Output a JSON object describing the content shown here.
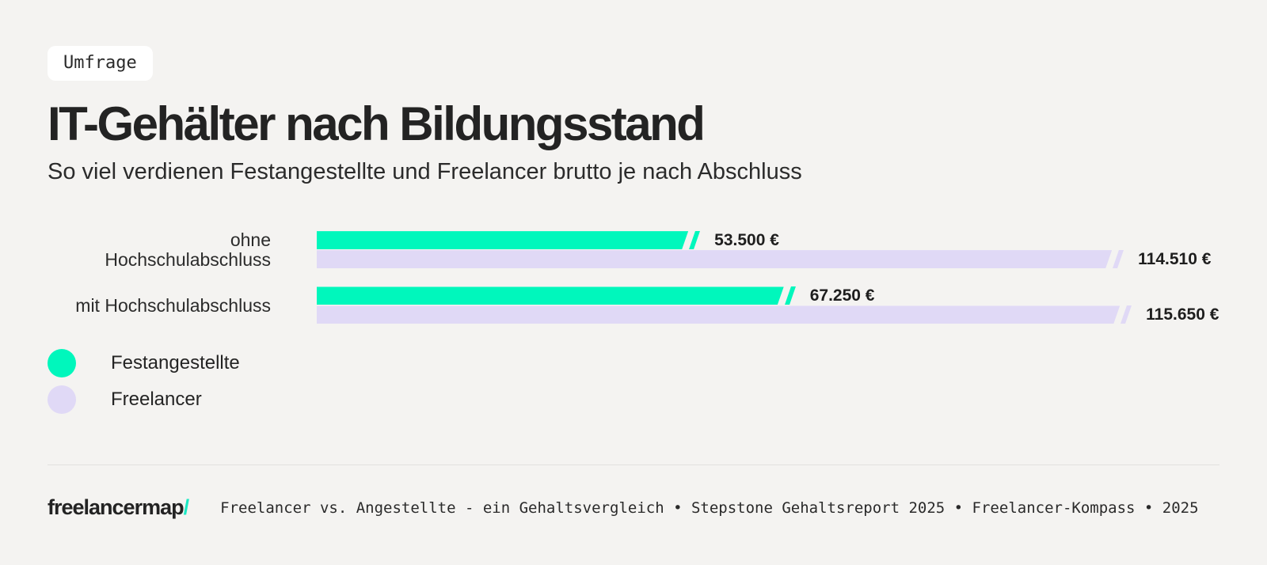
{
  "badge": {
    "label": "Umfrage"
  },
  "header": {
    "title": "IT-Gehälter nach Bildungsstand",
    "subtitle": "So viel verdienen Festangestellte und Freelancer brutto je nach Abschluss"
  },
  "chart_data": {
    "type": "bar",
    "orientation": "horizontal",
    "title": "IT-Gehälter nach Bildungsstand",
    "subtitle": "So viel verdienen Festangestellte und Freelancer brutto je nach Abschluss",
    "unit": "EUR brutto",
    "categories": [
      "ohne\nHochschulabschluss",
      "mit Hochschulabschluss"
    ],
    "series": [
      {
        "name": "Festangestellte",
        "color": "#00F7BC",
        "values": [
          53500,
          67250
        ],
        "value_labels": [
          "53.500 €",
          "67.250 €"
        ]
      },
      {
        "name": "Freelancer",
        "color": "#E0D9F6",
        "values": [
          114510,
          115650
        ],
        "value_labels": [
          "114.510 €",
          "115.650 €"
        ]
      }
    ],
    "axis_max": 130000,
    "grid": false,
    "legend_position": "bottom-left"
  },
  "legend": {
    "items": [
      {
        "label": "Festangestellte",
        "color": "#00F7BC"
      },
      {
        "label": "Freelancer",
        "color": "#E0D9F6"
      }
    ]
  },
  "footer": {
    "brand": "freelancermap",
    "brand_slash": "/",
    "source": "Freelancer vs. Angestellte - ein Gehaltsvergleich • Stepstone Gehaltsreport 2025 • Freelancer-Kompass • 2025"
  },
  "colors": {
    "background": "#F4F3F1",
    "badge_bg": "#FFFFFF",
    "text_primary": "#232323",
    "text_secondary": "#2B2B2B",
    "accent_green": "#00F7BC",
    "accent_lavender": "#E0D9F6",
    "brand_slash": "#1BE8C4",
    "divider": "#E2E1DF"
  }
}
